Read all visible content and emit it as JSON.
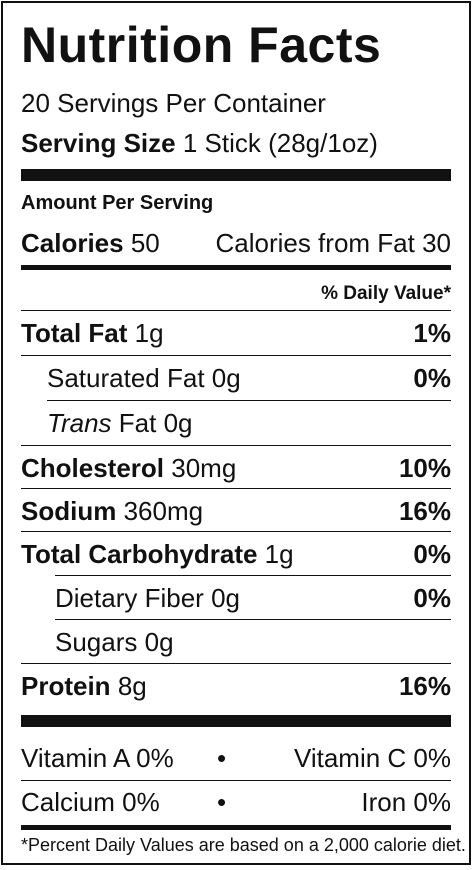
{
  "label": {
    "title": "Nutrition Facts",
    "servings_per_container": "20 Servings Per Container",
    "serving_size_label": "Serving Size",
    "serving_size_value": "1 Stick (28g/1oz)",
    "amount_per_serving": "Amount Per Serving",
    "calories_label": "Calories",
    "calories_value": "50",
    "calories_from_fat": "Calories from Fat 30",
    "daily_value_header": "% Daily Value*",
    "nutrients": [
      {
        "name": "Total Fat",
        "amount": "1g",
        "dv": "1%"
      },
      {
        "name": "Saturated Fat",
        "amount": "0g",
        "dv": "0%"
      },
      {
        "name": "Trans",
        "name_rest": "Fat",
        "amount": "0g",
        "dv": ""
      },
      {
        "name": "Cholesterol",
        "amount": "30mg",
        "dv": "10%"
      },
      {
        "name": "Sodium",
        "amount": "360mg",
        "dv": "16%"
      },
      {
        "name": "Total Carbohydrate",
        "amount": "1g",
        "dv": "0%"
      },
      {
        "name": "Dietary Fiber",
        "amount": "0g",
        "dv": "0%"
      },
      {
        "name": "Sugars",
        "amount": "0g",
        "dv": ""
      },
      {
        "name": "Protein",
        "amount": "8g",
        "dv": "16%"
      }
    ],
    "vitamins": [
      {
        "left": "Vitamin A 0%",
        "bullet": "•",
        "right": "Vitamin C 0%"
      },
      {
        "left": "Calcium 0%",
        "bullet": "•",
        "right": "Iron 0%"
      }
    ],
    "footnote": "*Percent Daily Values are based on a 2,000 calorie diet."
  }
}
